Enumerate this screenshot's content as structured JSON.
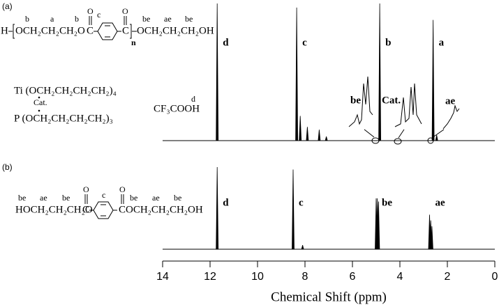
{
  "chart_data": [
    {
      "type": "spectrum",
      "panel": "(a)",
      "xlim": [
        14,
        0
      ],
      "x": [
        11.7,
        8.35,
        8.2,
        7.9,
        7.4,
        7.1,
        4.85,
        2.6,
        2.45
      ],
      "values": [
        100,
        97,
        18,
        10,
        8,
        3,
        100,
        88,
        4
      ],
      "labels": [
        "d",
        "c",
        null,
        null,
        null,
        null,
        "b",
        "a",
        null
      ],
      "inset_labels": [
        "be",
        "Cat.",
        "ae"
      ],
      "formula": {
        "end": "H",
        "left": "OCH₂CH₂CH₂O",
        "c1": "C",
        "c2": "C",
        "o1": "O",
        "o2": "O",
        "n": "n",
        "right": "OCH₂CH₂CH₂OH",
        "tags": [
          "b",
          "a",
          "b",
          "c",
          "be",
          "ae",
          "be"
        ]
      },
      "catalyst": [
        "Ti (OCH₂CH₂CH₂CH₂)₄",
        "Cat.",
        "P (OCH₂CH₂CH₂CH₂)₃"
      ],
      "solvent": "CF₃COOH",
      "solvent_tag": "d"
    },
    {
      "type": "spectrum",
      "panel": "(b)",
      "xlim": [
        14,
        0
      ],
      "xticks": [
        14,
        12,
        10,
        8,
        6,
        4,
        2,
        0
      ],
      "xlabel": "Chemical Shift (ppm)",
      "x": [
        11.7,
        8.5,
        8.1,
        5.0,
        4.95,
        4.9,
        2.75,
        2.7,
        2.65
      ],
      "values": [
        100,
        97,
        5,
        62,
        62,
        58,
        42,
        35,
        28
      ],
      "labels": [
        "d",
        "c",
        null,
        "be",
        null,
        null,
        "ae",
        null,
        null
      ],
      "formula": {
        "left": "HOCH₂CH₂CH₂O",
        "c1": "C",
        "c2": "C",
        "o1": "O",
        "o2": "O",
        "right": "OCH₂CH₂CH₂OH",
        "tags": [
          "be",
          "ae",
          "be",
          "c",
          "be",
          "ae",
          "be"
        ]
      }
    }
  ]
}
